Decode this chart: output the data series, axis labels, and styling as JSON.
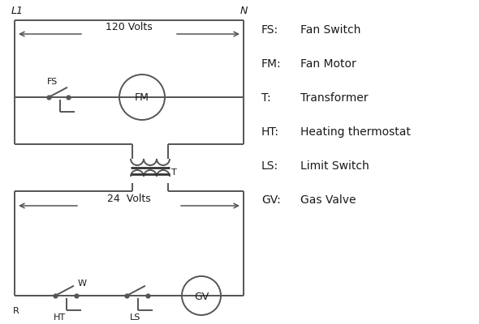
{
  "bg_color": "#ffffff",
  "line_color": "#555555",
  "dark_color": "#333333",
  "text_color": "#1a1a1a",
  "figsize": [
    5.9,
    4.0
  ],
  "dpi": 100,
  "legend_items": [
    [
      "FS:",
      "Fan Switch"
    ],
    [
      "FM:",
      "Fan Motor"
    ],
    [
      "T:",
      "Transformer"
    ],
    [
      "HT:",
      "Heating thermostat"
    ],
    [
      "LS:",
      "Limit Switch"
    ],
    [
      "GV:",
      "Gas Valve"
    ]
  ],
  "L1_label": "L1",
  "N_label": "N",
  "v120_label": "120 Volts",
  "v24_label": "24  Volts",
  "T_label": "T",
  "R_label": "R",
  "W_label": "W",
  "FS_label": "FS",
  "HT_label": "HT",
  "LS_label": "LS"
}
